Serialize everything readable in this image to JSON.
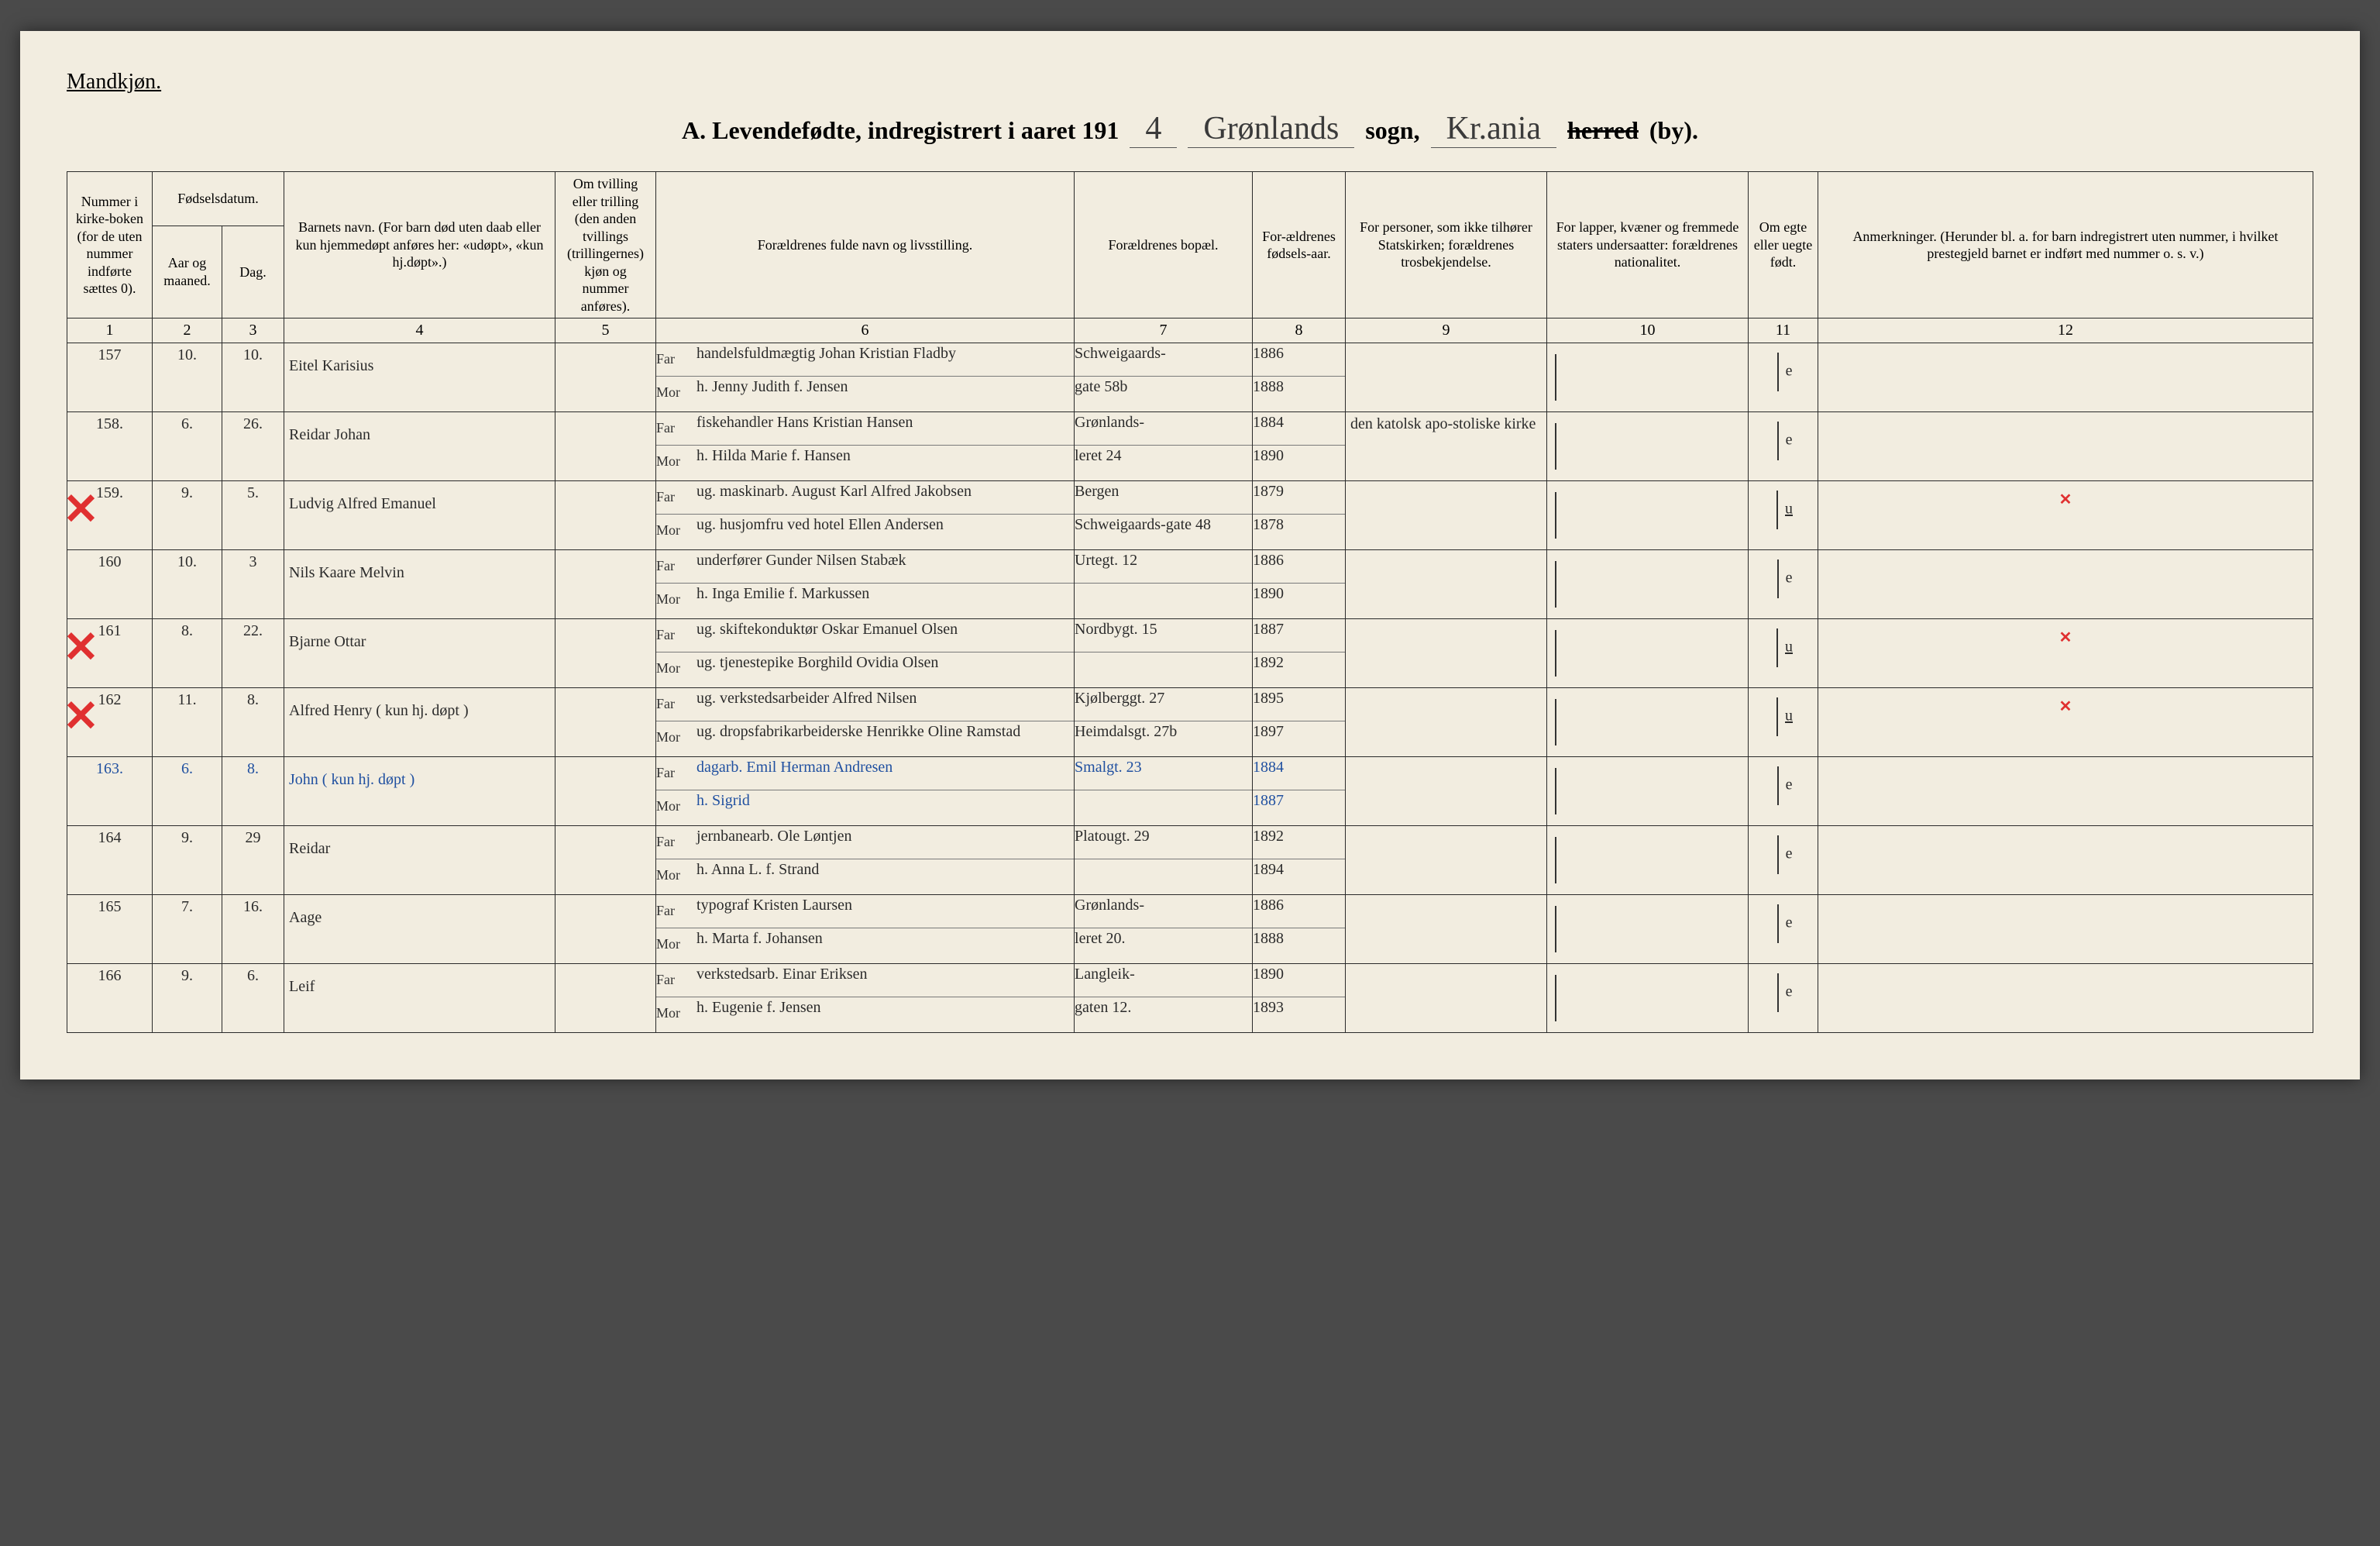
{
  "page": {
    "gender_label": "Mandkjøn.",
    "title_prefix": "A.  Levendefødte, indregistrert i aaret 191",
    "year_suffix": "4",
    "parish_word": "sogn,",
    "parish_name": "Grønlands",
    "district_name": "Kr.ania",
    "herred_label": "herred",
    "by_label": "(by)."
  },
  "columns": {
    "c1": "Nummer i kirke-boken (for de uten nummer indførte sættes 0).",
    "c2a": "Fødselsdatum.",
    "c2": "Aar og maaned.",
    "c3": "Dag.",
    "c4": "Barnets navn.\n(For barn død uten daab eller kun hjemmedøpt anføres her: «udøpt», «kun hj.døpt».)",
    "c5": "Om tvilling eller trilling (den anden tvillings (trillingernes) kjøn og nummer anføres).",
    "c6": "Forældrenes fulde navn og livsstilling.",
    "c7": "Forældrenes bopæl.",
    "c8": "For-ældrenes fødsels-aar.",
    "c9": "For personer, som ikke tilhører Statskirken; forældrenes trosbekjendelse.",
    "c10": "For lapper, kvæner og fremmede staters undersaatter: forældrenes nationalitet.",
    "c11": "Om egte eller uegte født.",
    "c12": "Anmerkninger.\n(Herunder bl. a. for barn indregistrert uten nummer, i hvilket prestegjeld barnet er indført med nummer o. s. v.)",
    "far": "Far",
    "mor": "Mor"
  },
  "colnums": [
    "1",
    "2",
    "3",
    "4",
    "5",
    "6",
    "7",
    "8",
    "9",
    "10",
    "11",
    "12"
  ],
  "rows": [
    {
      "num": "157",
      "month": "10.",
      "day": "10.",
      "name": "Eitel Karisius",
      "far": "handelsfuldmægtig Johan Kristian Fladby",
      "mor": "h. Jenny Judith f. Jensen",
      "addr_far": "Schweigaards-",
      "addr_mor": "gate 58b",
      "yf": "1886",
      "ym": "1888",
      "rel": "",
      "nat": "",
      "leg": "e",
      "note": "",
      "mark": false,
      "markR": false,
      "blue": false
    },
    {
      "num": "158.",
      "month": "6.",
      "day": "26.",
      "name": "Reidar Johan",
      "far": "fiskehandler Hans Kristian Hansen",
      "mor": "h. Hilda Marie f. Hansen",
      "addr_far": "Grønlands-",
      "addr_mor": "leret 24",
      "yf": "1884",
      "ym": "1890",
      "rel": "den katolsk apo-stoliske kirke",
      "nat": "",
      "leg": "e",
      "note": "",
      "mark": false,
      "markR": false,
      "blue": false
    },
    {
      "num": "159.",
      "month": "9.",
      "day": "5.",
      "name": "Ludvig Alfred Emanuel",
      "far": "ug. maskinarb. August Karl Alfred Jakobsen",
      "mor": "ug. husjomfru ved hotel Ellen Andersen",
      "addr_far": "Bergen",
      "addr_mor": "Schweigaards-gate 48",
      "yf": "1879",
      "ym": "1878",
      "rel": "",
      "nat": "",
      "leg": "u",
      "note": "",
      "mark": true,
      "markR": true,
      "blue": false
    },
    {
      "num": "160",
      "month": "10.",
      "day": "3",
      "name": "Nils Kaare Melvin",
      "far": "underfører Gunder Nilsen Stabæk",
      "mor": "h. Inga Emilie f. Markussen",
      "addr_far": "Urtegt. 12",
      "addr_mor": "",
      "yf": "1886",
      "ym": "1890",
      "rel": "",
      "nat": "",
      "leg": "e",
      "note": "",
      "mark": false,
      "markR": false,
      "blue": false
    },
    {
      "num": "161",
      "month": "8.",
      "day": "22.",
      "name": "Bjarne Ottar",
      "far": "ug. skiftekonduktør Oskar Emanuel Olsen",
      "mor": "ug. tjenestepike Borghild Ovidia Olsen",
      "addr_far": "Nordbygt. 15",
      "addr_mor": "",
      "yf": "1887",
      "ym": "1892",
      "rel": "",
      "nat": "",
      "leg": "u",
      "note": "",
      "mark": true,
      "markR": true,
      "blue": false
    },
    {
      "num": "162",
      "month": "11.",
      "day": "8.",
      "name": "Alfred Henry ( kun hj. døpt )",
      "far": "ug. verkstedsarbeider Alfred Nilsen",
      "mor": "ug. dropsfabrikarbeiderske Henrikke Oline Ramstad",
      "addr_far": "Kjølberggt. 27",
      "addr_mor": "Heimdalsgt. 27b",
      "yf": "1895",
      "ym": "1897",
      "rel": "",
      "nat": "",
      "leg": "u",
      "note": "",
      "mark": true,
      "markR": true,
      "blue": false
    },
    {
      "num": "163.",
      "month": "6.",
      "day": "8.",
      "name": "John ( kun hj. døpt )",
      "far": "dagarb. Emil Herman Andresen",
      "mor": "h. Sigrid",
      "addr_far": "Smalgt. 23",
      "addr_mor": "",
      "yf": "1884",
      "ym": "1887",
      "rel": "",
      "nat": "",
      "leg": "e",
      "note": "",
      "mark": false,
      "markR": false,
      "blue": true
    },
    {
      "num": "164",
      "month": "9.",
      "day": "29",
      "name": "Reidar",
      "far": "jernbanearb. Ole Løntjen",
      "mor": "h. Anna L. f. Strand",
      "addr_far": "Platougt. 29",
      "addr_mor": "",
      "yf": "1892",
      "ym": "1894",
      "rel": "",
      "nat": "",
      "leg": "e",
      "note": "",
      "mark": false,
      "markR": false,
      "blue": false
    },
    {
      "num": "165",
      "month": "7.",
      "day": "16.",
      "name": "Aage",
      "far": "typograf Kristen Laursen",
      "mor": "h. Marta f. Johansen",
      "addr_far": "Grønlands-",
      "addr_mor": "leret 20.",
      "yf": "1886",
      "ym": "1888",
      "rel": "",
      "nat": "",
      "leg": "e",
      "note": "",
      "mark": false,
      "markR": false,
      "blue": false
    },
    {
      "num": "166",
      "month": "9.",
      "day": "6.",
      "name": "Leif",
      "far": "verkstedsarb. Einar Eriksen",
      "mor": "h. Eugenie f. Jensen",
      "addr_far": "Langleik-",
      "addr_mor": "gaten 12.",
      "yf": "1890",
      "ym": "1893",
      "rel": "",
      "nat": "",
      "leg": "e",
      "note": "",
      "mark": false,
      "markR": false,
      "blue": false
    }
  ],
  "x_mark": "✕"
}
